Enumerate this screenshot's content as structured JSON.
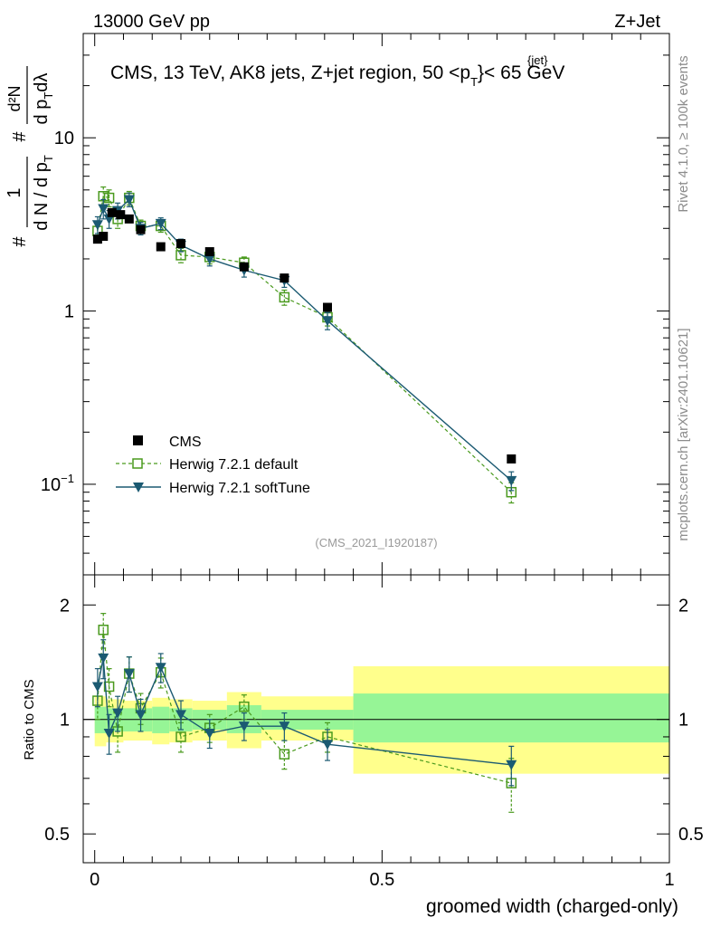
{
  "header": {
    "energy_label": "13000 GeV pp",
    "process_label": "Z+Jet"
  },
  "side_labels": {
    "rivet": "Rivet 4.1.0, ≥ 100k events",
    "mcplots": "mcplots.cern.ch [arXiv:2401.10621]"
  },
  "colors": {
    "cms": "#000000",
    "default": "#4a9a1e",
    "softtune": "#1b5a72",
    "band_outer": "#ffff8c",
    "band_inner": "#96f596"
  },
  "chart_data": [
    {
      "type": "scatter",
      "title": "CMS, 13 TeV, AK8 jets, Z+jet region, 50 <p_T^{jet}< 65 GeV",
      "title_parts": {
        "main": "CMS, 13 TeV, AK8 jets, Z+jet region, 50 <p",
        "sub": "T",
        "sup": "{jet}",
        "tail": "}< 65 GeV"
      },
      "ylabel": "1/dN/dpT # d²N/dpT dλ",
      "ylabel_parts": {
        "frac1_num": "1",
        "frac1_den": "d N / d p",
        "frac1_den_sub": "T",
        "frac2_num": "d²N",
        "frac2_den": "d p",
        "frac2_den_sub": "T",
        "frac2_den_tail": "dλ",
        "hash": "#"
      },
      "yscale": "log",
      "ylim": [
        0.03,
        40
      ],
      "xlim": [
        -0.02,
        1.0
      ],
      "y_ticks": [
        {
          "value": 0.1,
          "label": "10",
          "exp": "−1"
        },
        {
          "value": 1,
          "label": "1",
          "exp": ""
        },
        {
          "value": 10,
          "label": "10",
          "exp": ""
        }
      ],
      "analysis_tag": "(CMS_2021_I1920187)",
      "legend_position": "lower-left",
      "series": [
        {
          "name": "CMS",
          "style": "cms",
          "x": [
            0.005,
            0.015,
            0.03,
            0.045,
            0.06,
            0.08,
            0.115,
            0.15,
            0.2,
            0.26,
            0.33,
            0.405,
            0.725
          ],
          "y": [
            2.6,
            2.7,
            3.7,
            3.6,
            3.4,
            2.95,
            2.35,
            2.45,
            2.2,
            1.8,
            1.55,
            1.05,
            0.14
          ],
          "err": [
            0.08,
            0.08,
            0.1,
            0.1,
            0.1,
            0.08,
            0.07,
            0.07,
            0.06,
            0.05,
            0.04,
            0.03,
            0.004
          ]
        },
        {
          "name": "Herwig 7.2.1 default",
          "style": "default",
          "x": [
            0.005,
            0.015,
            0.025,
            0.04,
            0.06,
            0.08,
            0.115,
            0.15,
            0.2,
            0.26,
            0.33,
            0.405,
            0.725
          ],
          "y": [
            2.9,
            4.6,
            4.5,
            3.4,
            4.5,
            3.1,
            3.1,
            2.1,
            2.05,
            1.9,
            1.2,
            0.92,
            0.09
          ],
          "err": [
            0.3,
            0.6,
            0.5,
            0.4,
            0.4,
            0.25,
            0.25,
            0.2,
            0.18,
            0.15,
            0.12,
            0.1,
            0.012
          ]
        },
        {
          "name": "Herwig 7.2.1 softTune",
          "style": "softtune",
          "x": [
            0.005,
            0.015,
            0.025,
            0.04,
            0.06,
            0.08,
            0.115,
            0.15,
            0.2,
            0.26,
            0.33,
            0.405,
            0.725
          ],
          "y": [
            3.15,
            3.9,
            3.4,
            3.8,
            4.4,
            3.0,
            3.2,
            2.4,
            2.0,
            1.72,
            1.5,
            0.88,
            0.105
          ],
          "err": [
            0.35,
            0.5,
            0.4,
            0.4,
            0.4,
            0.25,
            0.25,
            0.2,
            0.18,
            0.15,
            0.13,
            0.1,
            0.013
          ]
        }
      ]
    },
    {
      "type": "scatter",
      "ylabel": "Ratio to CMS",
      "xlabel": "groomed width (charged-only)",
      "yscale": "log",
      "ylim": [
        0.42,
        2.4
      ],
      "xlim": [
        -0.02,
        1.0
      ],
      "y_ticks": [
        {
          "value": 0.5,
          "label": "0.5"
        },
        {
          "value": 1,
          "label": "1"
        },
        {
          "value": 2,
          "label": "2"
        }
      ],
      "x_ticks": [
        {
          "value": 0,
          "label": "0"
        },
        {
          "value": 0.5,
          "label": "0.5"
        },
        {
          "value": 1,
          "label": "1"
        }
      ],
      "bands": [
        {
          "x0": 0.0,
          "x1": 0.02,
          "inner": [
            0.92,
            1.08
          ],
          "outer": [
            0.85,
            1.15
          ]
        },
        {
          "x0": 0.02,
          "x1": 0.05,
          "inner": [
            0.93,
            1.07
          ],
          "outer": [
            0.87,
            1.13
          ]
        },
        {
          "x0": 0.05,
          "x1": 0.1,
          "inner": [
            0.93,
            1.07
          ],
          "outer": [
            0.88,
            1.12
          ]
        },
        {
          "x0": 0.1,
          "x1": 0.13,
          "inner": [
            0.92,
            1.08
          ],
          "outer": [
            0.86,
            1.14
          ]
        },
        {
          "x0": 0.13,
          "x1": 0.17,
          "inner": [
            0.93,
            1.07
          ],
          "outer": [
            0.87,
            1.13
          ]
        },
        {
          "x0": 0.17,
          "x1": 0.23,
          "inner": [
            0.94,
            1.06
          ],
          "outer": [
            0.88,
            1.12
          ]
        },
        {
          "x0": 0.23,
          "x1": 0.29,
          "inner": [
            0.92,
            1.09
          ],
          "outer": [
            0.84,
            1.18
          ]
        },
        {
          "x0": 0.29,
          "x1": 0.45,
          "inner": [
            0.94,
            1.06
          ],
          "outer": [
            0.88,
            1.15
          ]
        },
        {
          "x0": 0.45,
          "x1": 1.0,
          "inner": [
            0.87,
            1.17
          ],
          "outer": [
            0.72,
            1.38
          ]
        }
      ],
      "series": [
        {
          "name": "Herwig 7.2.1 default",
          "style": "default",
          "x": [
            0.005,
            0.015,
            0.025,
            0.04,
            0.06,
            0.08,
            0.115,
            0.15,
            0.2,
            0.26,
            0.33,
            0.405,
            0.725
          ],
          "y": [
            1.12,
            1.72,
            1.22,
            0.93,
            1.32,
            1.07,
            1.33,
            0.9,
            0.95,
            1.08,
            0.81,
            0.9,
            0.68
          ],
          "err": [
            0.12,
            0.18,
            0.14,
            0.11,
            0.14,
            0.1,
            0.12,
            0.08,
            0.08,
            0.08,
            0.07,
            0.08,
            0.11
          ]
        },
        {
          "name": "Herwig 7.2.1 softTune",
          "style": "softtune",
          "x": [
            0.005,
            0.015,
            0.025,
            0.04,
            0.06,
            0.08,
            0.115,
            0.15,
            0.2,
            0.26,
            0.33,
            0.405,
            0.725
          ],
          "y": [
            1.22,
            1.45,
            0.92,
            1.04,
            1.32,
            1.03,
            1.37,
            1.03,
            0.92,
            0.96,
            0.96,
            0.86,
            0.76
          ],
          "err": [
            0.14,
            0.17,
            0.11,
            0.11,
            0.14,
            0.1,
            0.12,
            0.09,
            0.08,
            0.08,
            0.08,
            0.08,
            0.09
          ]
        }
      ]
    }
  ]
}
